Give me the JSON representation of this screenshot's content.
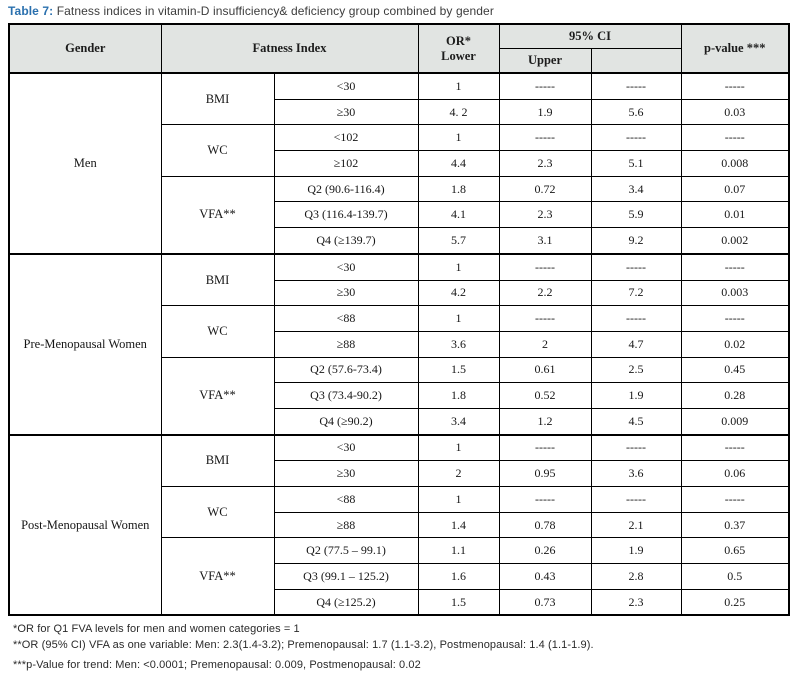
{
  "caption": {
    "prefix": "Table 7:",
    "text": " Fatness indices in vitamin-D insufficiency& deficiency group combined by gender"
  },
  "header": {
    "gender": "Gender",
    "fatness_index": "Fatness Index",
    "or_line1": "OR*",
    "or_line2": "Lower",
    "ci": "95% CI",
    "ci_upper": "Upper",
    "ci_blank": "",
    "p_value": "p-value ***"
  },
  "groups": [
    {
      "gender": "Men",
      "indices": [
        {
          "name": "BMI",
          "rows": [
            {
              "category": "<30",
              "or": "1",
              "upper": "-----",
              "ci2": "-----",
              "p": "-----"
            },
            {
              "category": "≥30",
              "or": "4. 2",
              "upper": "1.9",
              "ci2": "5.6",
              "p": "0.03"
            }
          ]
        },
        {
          "name": "WC",
          "rows": [
            {
              "category": "<102",
              "or": "1",
              "upper": "-----",
              "ci2": "-----",
              "p": "-----"
            },
            {
              "category": "≥102",
              "or": "4.4",
              "upper": "2.3",
              "ci2": "5.1",
              "p": "0.008"
            }
          ]
        },
        {
          "name": "VFA**",
          "rows": [
            {
              "category": "Q2 (90.6-116.4)",
              "or": "1.8",
              "upper": "0.72",
              "ci2": "3.4",
              "p": "0.07"
            },
            {
              "category": "Q3 (116.4-139.7)",
              "or": "4.1",
              "upper": "2.3",
              "ci2": "5.9",
              "p": "0.01"
            },
            {
              "category": "Q4 (≥139.7)",
              "or": "5.7",
              "upper": "3.1",
              "ci2": "9.2",
              "p": "0.002"
            }
          ]
        }
      ]
    },
    {
      "gender": "Pre-Menopausal Women",
      "indices": [
        {
          "name": "BMI",
          "rows": [
            {
              "category": "<30",
              "or": "1",
              "upper": "-----",
              "ci2": "-----",
              "p": "-----"
            },
            {
              "category": "≥30",
              "or": "4.2",
              "upper": "2.2",
              "ci2": "7.2",
              "p": "0.003"
            }
          ]
        },
        {
          "name": "WC",
          "rows": [
            {
              "category": "<88",
              "or": "1",
              "upper": "-----",
              "ci2": "-----",
              "p": "-----"
            },
            {
              "category": "≥88",
              "or": "3.6",
              "upper": "2",
              "ci2": "4.7",
              "p": "0.02"
            }
          ]
        },
        {
          "name": "VFA**",
          "rows": [
            {
              "category": "Q2 (57.6-73.4)",
              "or": "1.5",
              "upper": "0.61",
              "ci2": "2.5",
              "p": "0.45"
            },
            {
              "category": "Q3 (73.4-90.2)",
              "or": "1.8",
              "upper": "0.52",
              "ci2": "1.9",
              "p": "0.28"
            },
            {
              "category": "Q4 (≥90.2)",
              "or": "3.4",
              "upper": "1.2",
              "ci2": "4.5",
              "p": "0.009"
            }
          ]
        }
      ]
    },
    {
      "gender": "Post-Menopausal Women",
      "indices": [
        {
          "name": "BMI",
          "rows": [
            {
              "category": "<30",
              "or": "1",
              "upper": "-----",
              "ci2": "-----",
              "p": "-----"
            },
            {
              "category": "≥30",
              "or": "2",
              "upper": "0.95",
              "ci2": "3.6",
              "p": "0.06"
            }
          ]
        },
        {
          "name": "WC",
          "rows": [
            {
              "category": "<88",
              "or": "1",
              "upper": "-----",
              "ci2": "-----",
              "p": "-----"
            },
            {
              "category": "≥88",
              "or": "1.4",
              "upper": "0.78",
              "ci2": "2.1",
              "p": "0.37"
            }
          ]
        },
        {
          "name": "VFA**",
          "rows": [
            {
              "category": "Q2 (77.5 – 99.1)",
              "or": "1.1",
              "upper": "0.26",
              "ci2": "1.9",
              "p": "0.65"
            },
            {
              "category": "Q3 (99.1 – 125.2)",
              "or": "1.6",
              "upper": "0.43",
              "ci2": "2.8",
              "p": "0.5"
            },
            {
              "category": "Q4 (≥125.2)",
              "or": "1.5",
              "upper": "0.73",
              "ci2": "2.3",
              "p": "0.25"
            }
          ]
        }
      ]
    }
  ],
  "footnotes": [
    "*OR for Q1 FVA levels for men and women categories = 1",
    "**OR (95% CI) VFA as one variable: Men: 2.3(1.4-3.2); Premenopausal: 1.7 (1.1-3.2), Postmenopausal: 1.4 (1.1-1.9).",
    "***p-Value for trend: Men: <0.0001; Premenopausal: 0.009, Postmenopausal: 0.02"
  ]
}
